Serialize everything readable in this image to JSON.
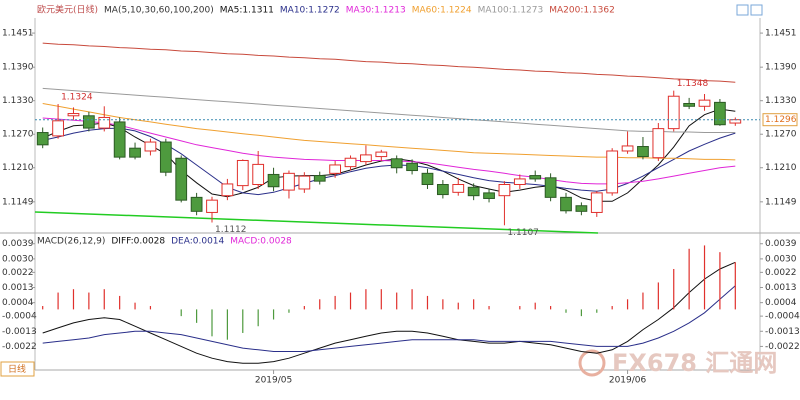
{
  "chart_data": [
    {
      "type": "candlestick",
      "title": "欧元美元(日线)",
      "indicator": "MA(5,10,30,60,100,200)",
      "categories": [
        null,
        null,
        null,
        null,
        null,
        null,
        null,
        null,
        null,
        null,
        null,
        null,
        null,
        null,
        null,
        "2019/05",
        null,
        null,
        null,
        null,
        null,
        null,
        null,
        null,
        null,
        null,
        null,
        null,
        null,
        null,
        null,
        null,
        null,
        null,
        null,
        null,
        null,
        null,
        "2019/06",
        null,
        null,
        null,
        null,
        null,
        null,
        null
      ],
      "open": [
        1.1273,
        1.1267,
        1.1303,
        1.1303,
        1.1281,
        1.1292,
        1.1245,
        1.124,
        1.1256,
        1.1227,
        1.1157,
        1.113,
        1.116,
        1.1178,
        1.118,
        1.1198,
        1.117,
        1.1172,
        1.1196,
        1.12,
        1.1212,
        1.1221,
        1.123,
        1.1226,
        1.1218,
        1.12,
        1.118,
        1.1166,
        1.1175,
        1.1165,
        1.116,
        1.118,
        1.1196,
        1.1192,
        1.1157,
        1.1142,
        1.113,
        1.1165,
        1.124,
        1.1248,
        1.1228,
        1.128,
        1.1325,
        1.132,
        1.1327,
        1.129
      ],
      "high": [
        1.1282,
        1.1324,
        1.1318,
        1.131,
        1.132,
        1.13,
        1.1255,
        1.1262,
        1.1262,
        1.1232,
        1.1165,
        1.1158,
        1.119,
        1.1225,
        1.124,
        1.121,
        1.1205,
        1.1202,
        1.1203,
        1.1222,
        1.1232,
        1.125,
        1.1242,
        1.1232,
        1.1225,
        1.1208,
        1.1188,
        1.1192,
        1.1182,
        1.1172,
        1.1186,
        1.1198,
        1.1205,
        1.12,
        1.1165,
        1.1148,
        1.1168,
        1.1245,
        1.1275,
        1.1265,
        1.129,
        1.1348,
        1.1335,
        1.1342,
        1.1333,
        1.13
      ],
      "low": [
        1.1245,
        1.1262,
        1.1296,
        1.1275,
        1.1275,
        1.1225,
        1.1225,
        1.1232,
        1.1195,
        1.1148,
        1.1125,
        1.1112,
        1.1152,
        1.117,
        1.1172,
        1.1168,
        1.1155,
        1.1165,
        1.118,
        1.1192,
        1.1205,
        1.1215,
        1.1222,
        1.12,
        1.1198,
        1.1172,
        1.1155,
        1.116,
        1.1152,
        1.1148,
        1.1107,
        1.1172,
        1.1185,
        1.115,
        1.1128,
        1.1125,
        1.1122,
        1.116,
        1.1235,
        1.1225,
        1.1222,
        1.1275,
        1.1315,
        1.1312,
        1.1285,
        1.1285
      ],
      "close": [
        1.1251,
        1.1294,
        1.1307,
        1.1281,
        1.13,
        1.1229,
        1.1229,
        1.1256,
        1.1202,
        1.1152,
        1.1132,
        1.1152,
        1.1181,
        1.1223,
        1.1216,
        1.1176,
        1.12,
        1.1195,
        1.1186,
        1.1215,
        1.1227,
        1.1233,
        1.1238,
        1.121,
        1.1205,
        1.118,
        1.1162,
        1.118,
        1.116,
        1.1155,
        1.118,
        1.119,
        1.119,
        1.1157,
        1.1133,
        1.1132,
        1.1165,
        1.124,
        1.1249,
        1.123,
        1.128,
        1.1338,
        1.132,
        1.1331,
        1.1287,
        1.1296
      ],
      "up_color": "#e0302c",
      "down_color": "#4e9a3e",
      "series": [
        {
          "name": "MA5:1.1311",
          "color": "#111111",
          "values": [
            1.1263,
            1.1275,
            1.1285,
            1.1287,
            1.129,
            1.1282,
            1.1265,
            1.125,
            1.1235,
            1.1205,
            1.1183,
            1.1163,
            1.1158,
            1.1165,
            1.1175,
            1.1192,
            1.1195,
            1.1196,
            1.1196,
            1.1198,
            1.1206,
            1.1215,
            1.1222,
            1.1226,
            1.1222,
            1.1215,
            1.1204,
            1.119,
            1.1178,
            1.1172,
            1.1166,
            1.117,
            1.1175,
            1.1178,
            1.117,
            1.1156,
            1.115,
            1.115,
            1.1165,
            1.119,
            1.1215,
            1.1247,
            1.1285,
            1.1305,
            1.1315,
            1.1311
          ]
        },
        {
          "name": "MA10:1.1272",
          "color": "#2a2f8a",
          "values": [
            1.1259,
            1.1265,
            1.1272,
            1.1277,
            1.128,
            1.1281,
            1.1276,
            1.1266,
            1.1252,
            1.1235,
            1.1215,
            1.1195,
            1.1175,
            1.1165,
            1.1162,
            1.1166,
            1.1174,
            1.1182,
            1.119,
            1.1196,
            1.1203,
            1.1209,
            1.1213,
            1.1215,
            1.1214,
            1.121,
            1.1204,
            1.1198,
            1.1192,
            1.1187,
            1.1184,
            1.1182,
            1.118,
            1.1177,
            1.1173,
            1.117,
            1.1168,
            1.1172,
            1.1182,
            1.1195,
            1.121,
            1.1225,
            1.124,
            1.1252,
            1.1263,
            1.1272
          ]
        },
        {
          "name": "MA30:1.1213",
          "color": "#e026d8",
          "values": [
            1.1299,
            1.1297,
            1.1295,
            1.1293,
            1.129,
            1.1286,
            1.1279,
            1.1272,
            1.1265,
            1.1258,
            1.1251,
            1.1246,
            1.1241,
            1.1236,
            1.1232,
            1.1229,
            1.1227,
            1.1225,
            1.1224,
            1.1223,
            1.1223,
            1.1223,
            1.1223,
            1.1222,
            1.1221,
            1.1219,
            1.1215,
            1.1211,
            1.1207,
            1.1204,
            1.12,
            1.1196,
            1.1193,
            1.1189,
            1.1185,
            1.1182,
            1.1181,
            1.1181,
            1.1183,
            1.1186,
            1.119,
            1.1195,
            1.12,
            1.1205,
            1.121,
            1.1213
          ]
        },
        {
          "name": "MA60:1.1224",
          "color": "#f0a030",
          "values": [
            1.1325,
            1.132,
            1.1315,
            1.131,
            1.1305,
            1.13,
            1.1296,
            1.1292,
            1.1288,
            1.1284,
            1.128,
            1.1277,
            1.1274,
            1.1271,
            1.1268,
            1.1265,
            1.1262,
            1.1259,
            1.1257,
            1.1255,
            1.1253,
            1.1251,
            1.1249,
            1.1247,
            1.1245,
            1.1243,
            1.1241,
            1.1239,
            1.1237,
            1.1236,
            1.1235,
            1.1234,
            1.1233,
            1.1232,
            1.1231,
            1.123,
            1.1229,
            1.1229,
            1.1228,
            1.1228,
            1.1227,
            1.1227,
            1.1226,
            1.1225,
            1.1225,
            1.1224
          ]
        },
        {
          "name": "MA100:1.1273",
          "color": "#9a9a9a",
          "values": [
            1.1352,
            1.135,
            1.1348,
            1.1346,
            1.1344,
            1.1342,
            1.134,
            1.1338,
            1.1336,
            1.1334,
            1.1332,
            1.133,
            1.1328,
            1.1326,
            1.1324,
            1.1322,
            1.132,
            1.1318,
            1.1316,
            1.1314,
            1.1312,
            1.131,
            1.1308,
            1.1306,
            1.1304,
            1.1302,
            1.13,
            1.1298,
            1.1296,
            1.1294,
            1.1292,
            1.129,
            1.1288,
            1.1286,
            1.1284,
            1.1282,
            1.128,
            1.1278,
            1.1276,
            1.1275,
            1.1275,
            1.1274,
            1.1274,
            1.1273,
            1.1273,
            1.1273
          ]
        },
        {
          "name": "MA200:1.1362",
          "color": "#c84a3c",
          "values": [
            1.1433,
            1.1431,
            1.143,
            1.1428,
            1.1427,
            1.1425,
            1.1424,
            1.1422,
            1.1421,
            1.1419,
            1.1418,
            1.1416,
            1.1414,
            1.1413,
            1.1411,
            1.141,
            1.1408,
            1.1407,
            1.1405,
            1.1404,
            1.1402,
            1.14,
            1.1399,
            1.1397,
            1.1396,
            1.1394,
            1.1393,
            1.1391,
            1.139,
            1.1388,
            1.1386,
            1.1385,
            1.1383,
            1.1382,
            1.138,
            1.1379,
            1.1377,
            1.1376,
            1.1374,
            1.1373,
            1.1371,
            1.1369,
            1.1368,
            1.1366,
            1.1365,
            1.1363
          ]
        }
      ],
      "annotations": [
        1.1324,
        1.1348,
        1.1112,
        1.1107
      ],
      "last_price": 1.1296,
      "ylim": [
        1.1095,
        1.1478
      ],
      "yticks": [
        1.1451,
        {
          "value": 1.139,
          "label": "1.1390"
        },
        {
          "value": 1.133,
          "label": "1.1330"
        },
        {
          "value": 1.127,
          "label": "1.1270"
        },
        {
          "value": 1.121,
          "label": "1.1210"
        },
        1.1149
      ]
    },
    {
      "type": "macd",
      "title": "MACD(26,12,9)",
      "series": [
        {
          "name": "DIFF:0.0028",
          "color": "#111111",
          "kind": "line",
          "values": [
            -0.0014,
            -0.0011,
            -0.0008,
            -0.0006,
            -0.0005,
            -0.0006,
            -0.001,
            -0.0014,
            -0.0018,
            -0.0022,
            -0.0026,
            -0.0029,
            -0.0031,
            -0.0032,
            -0.0032,
            -0.0031,
            -0.0029,
            -0.0026,
            -0.0023,
            -0.002,
            -0.0018,
            -0.0016,
            -0.0014,
            -0.0013,
            -0.0013,
            -0.0014,
            -0.0016,
            -0.0018,
            -0.0019,
            -0.002,
            -0.002,
            -0.0019,
            -0.002,
            -0.0021,
            -0.0023,
            -0.0025,
            -0.0026,
            -0.0024,
            -0.0019,
            -0.0012,
            -0.0006,
            0.0001,
            0.001,
            0.0018,
            0.0024,
            0.0028
          ]
        },
        {
          "name": "DEA:0.0014",
          "color": "#2a2f8a",
          "kind": "line",
          "values": [
            -0.002,
            -0.0019,
            -0.0018,
            -0.0017,
            -0.0015,
            -0.0014,
            -0.0013,
            -0.0013,
            -0.0014,
            -0.0015,
            -0.0017,
            -0.0019,
            -0.0021,
            -0.0023,
            -0.0024,
            -0.0025,
            -0.0025,
            -0.0025,
            -0.0024,
            -0.0023,
            -0.0022,
            -0.0021,
            -0.002,
            -0.0019,
            -0.0018,
            -0.0018,
            -0.0018,
            -0.0018,
            -0.0018,
            -0.0019,
            -0.0019,
            -0.0019,
            -0.0019,
            -0.0019,
            -0.002,
            -0.0021,
            -0.0022,
            -0.0022,
            -0.0022,
            -0.002,
            -0.0017,
            -0.0013,
            -0.0008,
            -0.0002,
            0.0006,
            0.0014
          ]
        },
        {
          "name": "MACD:0.0028",
          "color": "#e026d8",
          "kind": "bar",
          "up_color": "#e0302c",
          "down_color": "#4e9a3e",
          "values": [
            0.0002,
            0.001,
            0.0012,
            0.001,
            0.0012,
            0.0008,
            0.0004,
            0.0002,
            0,
            -0.0004,
            -0.0008,
            -0.0016,
            -0.0018,
            -0.0014,
            -0.001,
            -0.0006,
            -0.0002,
            0.0002,
            0.0006,
            0.0008,
            0.001,
            0.0012,
            0.0012,
            0.001,
            0.0012,
            0.0008,
            0.0006,
            0.0004,
            0.0006,
            0.0002,
            0,
            0.0002,
            0.0004,
            0.0002,
            -0.0002,
            -0.0004,
            -0.0002,
            0.0002,
            0.0006,
            0.001,
            0.0016,
            0.0024,
            0.0036,
            0.0038,
            0.0034,
            0.0028
          ]
        }
      ],
      "ylim": [
        -0.0036,
        0.0043
      ],
      "yticks": [
        0.0039,
        {
          "value": 0.003,
          "label": "0.0030"
        },
        0.0022,
        0.0013,
        0.0004,
        -0.0004,
        -0.0013,
        -0.0022
      ]
    }
  ],
  "period_button": "日线",
  "watermark": "FX678 汇通网"
}
